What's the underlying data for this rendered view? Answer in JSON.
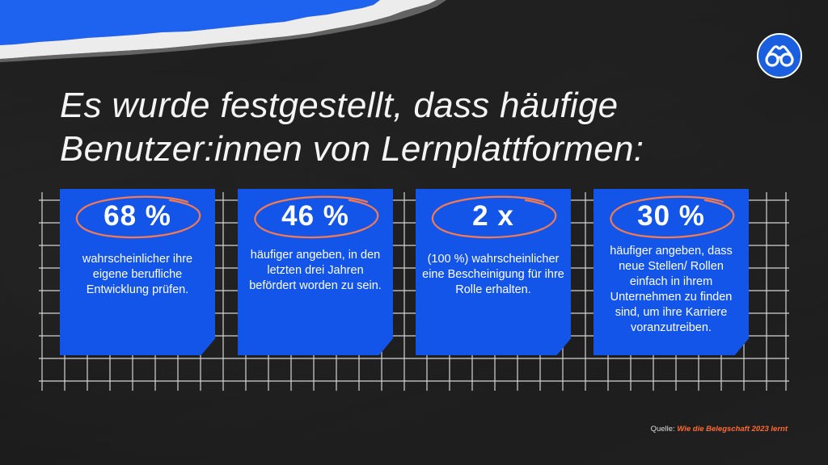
{
  "title": {
    "line1": "Es wurde festgestellt, dass häufige",
    "line2": "Benutzer:innen von Lernplattformen:"
  },
  "cards": [
    {
      "stat": "68 %",
      "text": "wahrscheinlicher ihre eigene berufliche Entwicklung prüfen."
    },
    {
      "stat": "46 %",
      "text": "häufiger angeben, in den letzten drei Jahren befördert worden zu sein."
    },
    {
      "stat": "2 x",
      "text": "(100 %) wahrscheinlicher eine Bescheinigung für ihre Rolle erhalten."
    },
    {
      "stat": "30 %",
      "text": "häufiger angeben, dass neue Stellen/ Rollen einfach in ihrem Unternehmen zu finden sind, um ihre Karriere voranzutreiben."
    }
  ],
  "source": {
    "label": "Quelle:",
    "link": "Wie die Belegschaft 2023 lernt"
  },
  "colors": {
    "card": "#1355e8",
    "ring": "#f47a52",
    "accent": "#ff6a33",
    "logo": "#1a5fe0"
  },
  "icons": {
    "logo": "glasses-icon"
  }
}
